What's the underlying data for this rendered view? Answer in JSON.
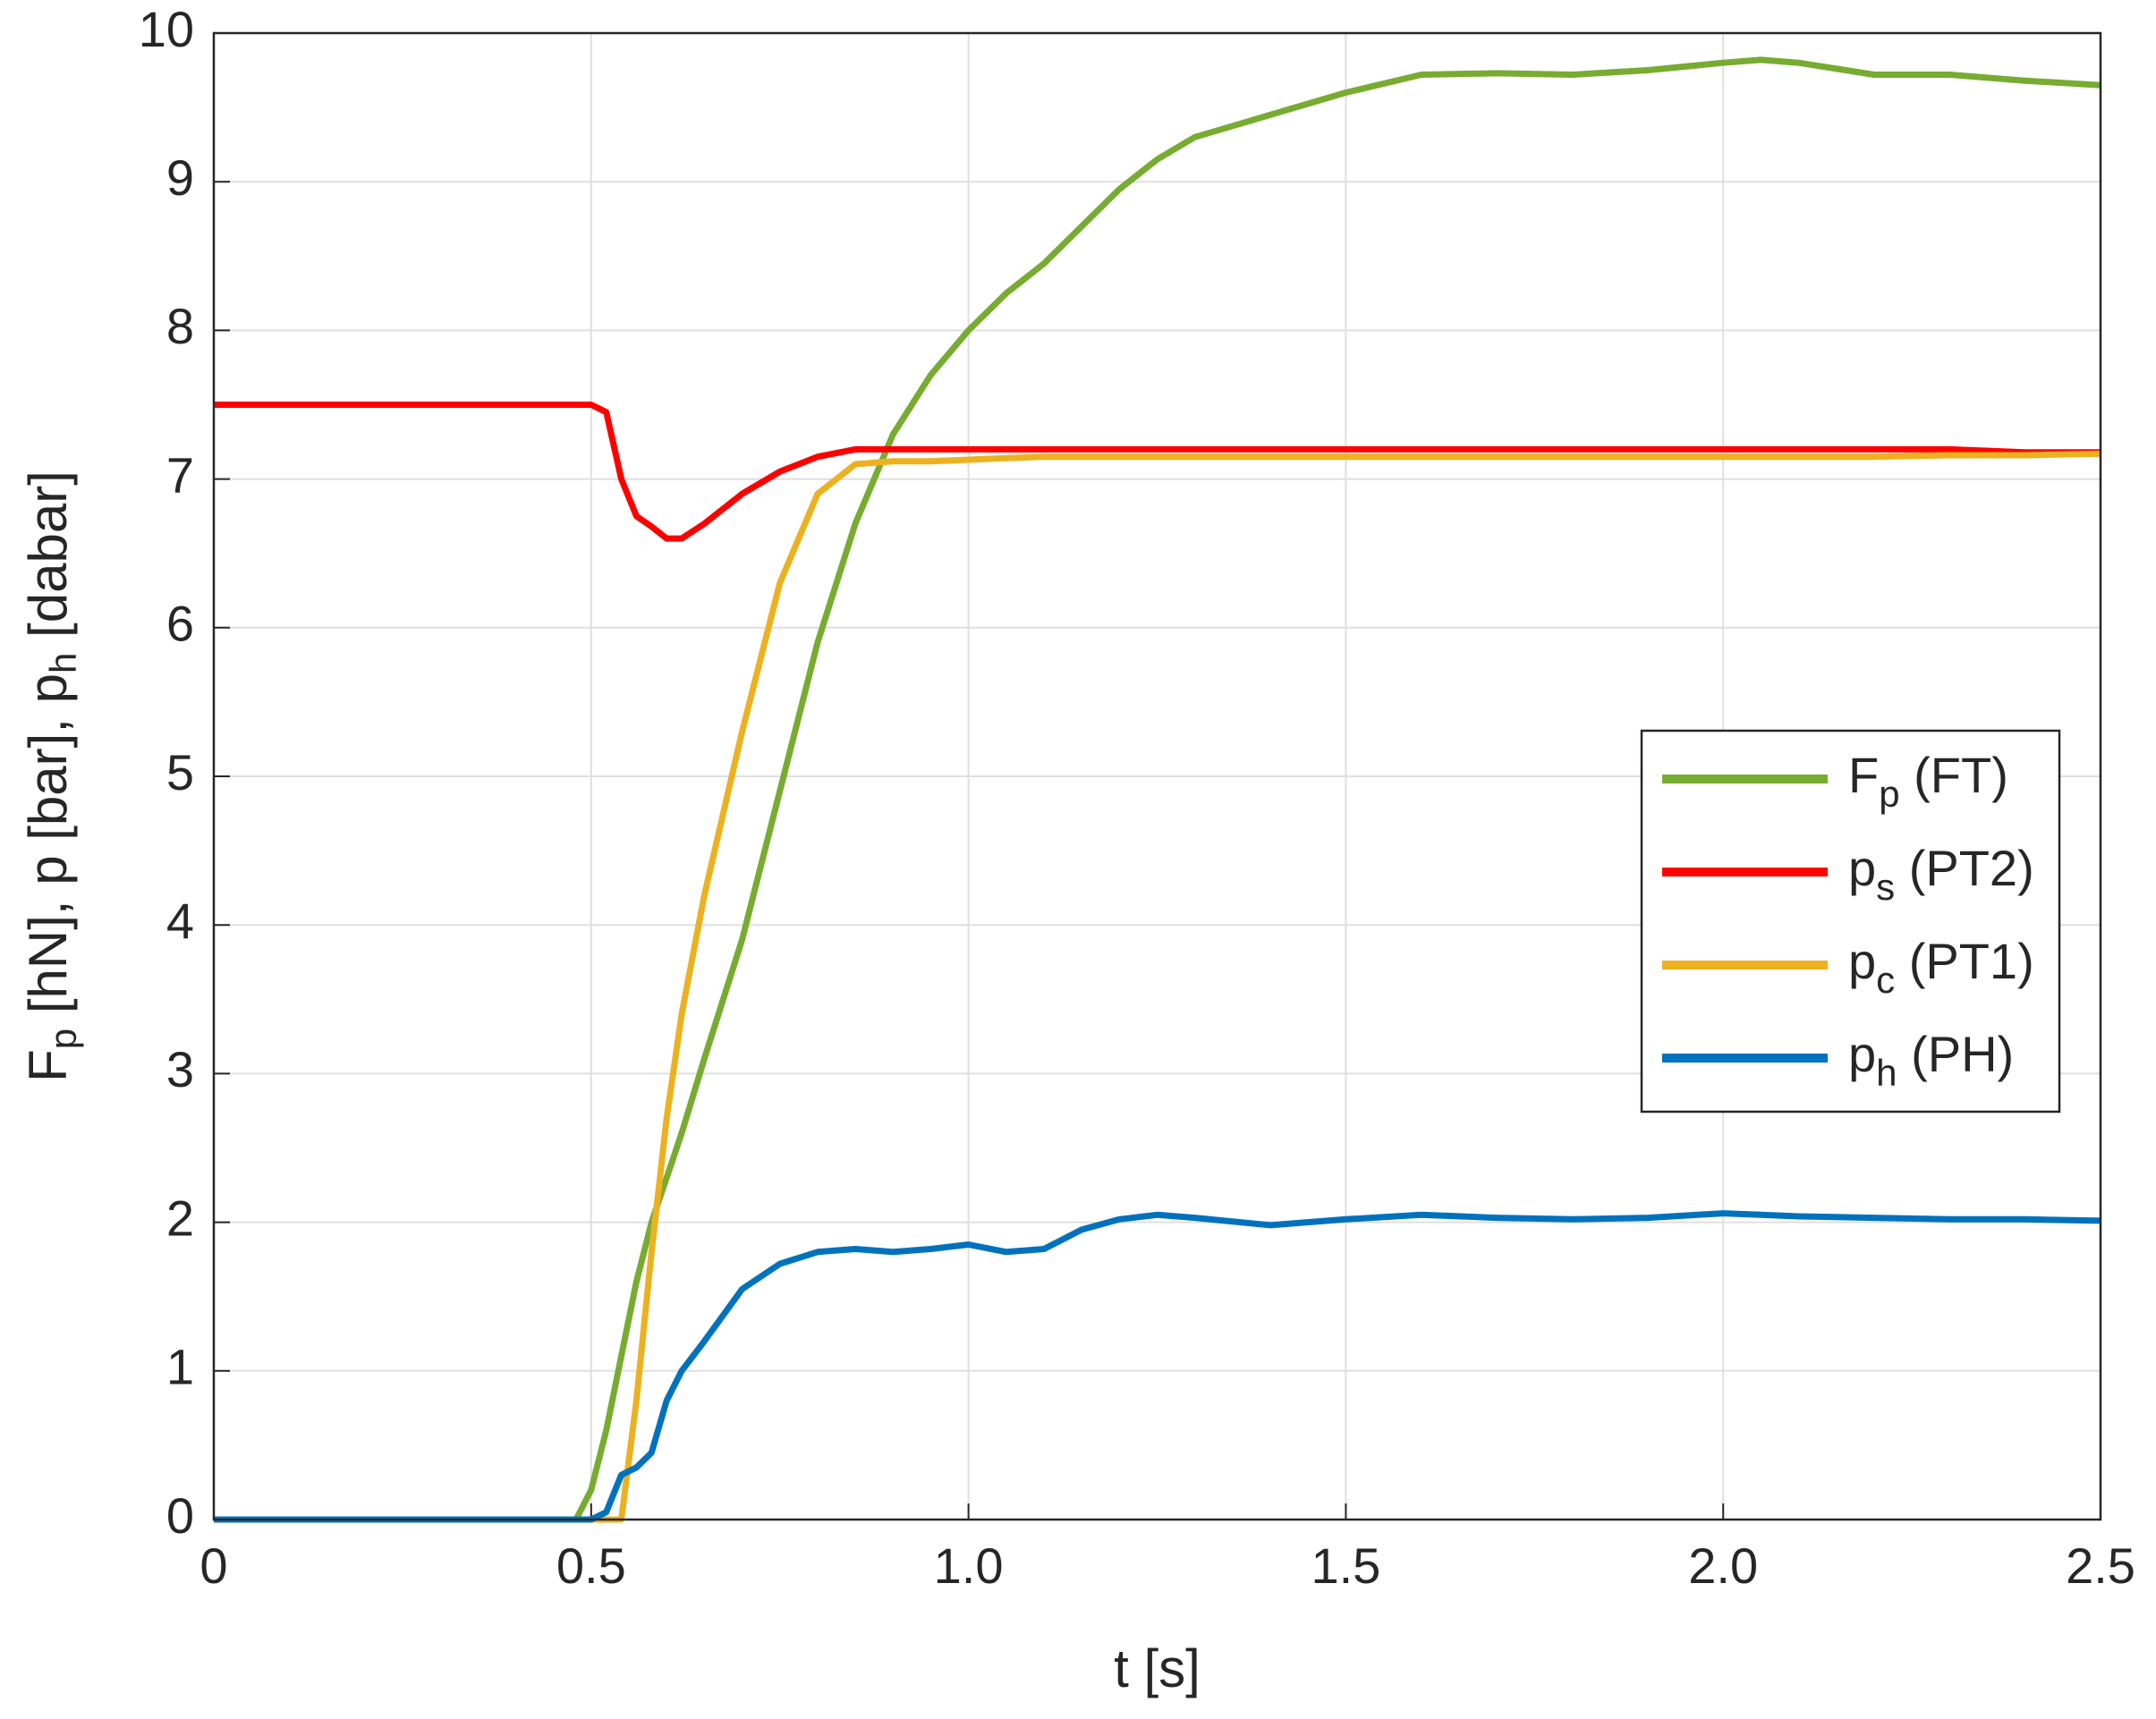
{
  "chart_data": {
    "type": "line",
    "xlabel": "t [s]",
    "ylabel": [
      "F",
      "p",
      " [hN], p [bar], p",
      "h",
      " [dabar]"
    ],
    "xlim": [
      0,
      2.5
    ],
    "ylim": [
      0,
      10
    ],
    "xticks": [
      0,
      0.5,
      {
        "value": 1,
        "label": "1.0"
      },
      1.5,
      {
        "value": 2,
        "label": "2.0"
      },
      2.5
    ],
    "yticks": [
      0,
      1,
      2,
      3,
      4,
      5,
      6,
      7,
      8,
      9,
      10
    ],
    "grid": true,
    "legend": "right",
    "x": [
      0,
      0.1,
      0.2,
      0.3,
      0.4,
      0.48,
      0.5,
      0.52,
      0.54,
      0.56,
      0.58,
      0.6,
      0.62,
      0.65,
      0.7,
      0.75,
      0.8,
      0.85,
      0.9,
      0.95,
      1.0,
      1.05,
      1.1,
      1.15,
      1.2,
      1.25,
      1.3,
      1.4,
      1.5,
      1.6,
      1.7,
      1.8,
      1.9,
      2.0,
      2.05,
      2.1,
      2.2,
      2.3,
      2.4,
      2.5
    ],
    "series": [
      {
        "name": [
          "F",
          "p",
          " (FT)"
        ],
        "color": "#77ac30",
        "values": [
          0,
          0,
          0,
          0,
          0,
          0,
          0.2,
          0.6,
          1.1,
          1.6,
          2.0,
          2.3,
          2.6,
          3.1,
          3.9,
          4.9,
          5.9,
          6.7,
          7.3,
          7.7,
          8.0,
          8.25,
          8.45,
          8.7,
          8.95,
          9.15,
          9.3,
          9.45,
          9.6,
          9.72,
          9.73,
          9.72,
          9.75,
          9.8,
          9.82,
          9.8,
          9.72,
          9.72,
          9.68,
          9.65
        ]
      },
      {
        "name": [
          "p",
          "s",
          " (PT2)"
        ],
        "color": "#ff0000",
        "values": [
          7.5,
          7.5,
          7.5,
          7.5,
          7.5,
          7.5,
          7.5,
          7.45,
          7.0,
          6.75,
          6.68,
          6.6,
          6.6,
          6.7,
          6.9,
          7.05,
          7.15,
          7.2,
          7.2,
          7.2,
          7.2,
          7.2,
          7.2,
          7.2,
          7.2,
          7.2,
          7.2,
          7.2,
          7.2,
          7.2,
          7.2,
          7.2,
          7.2,
          7.2,
          7.2,
          7.2,
          7.2,
          7.2,
          7.18,
          7.18
        ]
      },
      {
        "name": [
          "p",
          "c",
          " (PT1)"
        ],
        "color": "#edb120",
        "values": [
          0,
          0,
          0,
          0,
          0,
          0,
          0,
          0,
          0,
          0.8,
          1.8,
          2.7,
          3.4,
          4.2,
          5.3,
          6.3,
          6.9,
          7.1,
          7.12,
          7.12,
          7.13,
          7.14,
          7.15,
          7.15,
          7.15,
          7.15,
          7.15,
          7.15,
          7.15,
          7.15,
          7.15,
          7.15,
          7.15,
          7.15,
          7.15,
          7.15,
          7.15,
          7.16,
          7.16,
          7.17
        ]
      },
      {
        "name": [
          "p",
          "h",
          " (PH)"
        ],
        "color": "#0072bd",
        "values": [
          0,
          0,
          0,
          0,
          0,
          0,
          0,
          0.05,
          0.3,
          0.35,
          0.45,
          0.8,
          1.0,
          1.2,
          1.55,
          1.72,
          1.8,
          1.82,
          1.8,
          1.82,
          1.85,
          1.8,
          1.82,
          1.95,
          2.02,
          2.05,
          2.03,
          1.98,
          2.02,
          2.05,
          2.03,
          2.02,
          2.03,
          2.06,
          2.05,
          2.04,
          2.03,
          2.02,
          2.02,
          2.01
        ]
      }
    ]
  }
}
